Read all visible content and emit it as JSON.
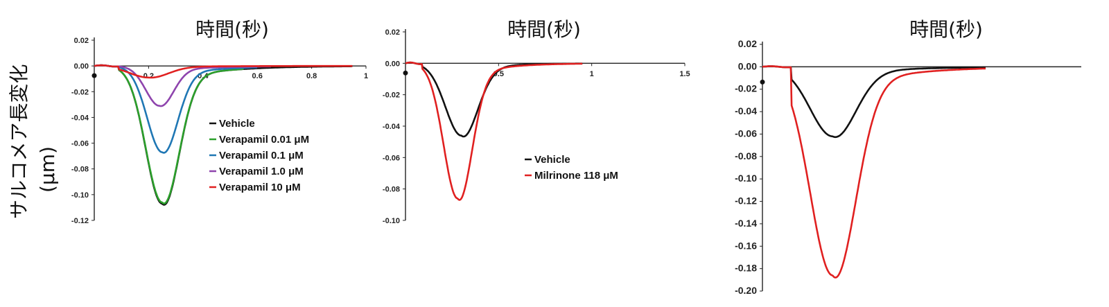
{
  "y_axis_label": {
    "line1": "サルコメア長変化",
    "line2": "(μm)"
  },
  "chart_data": [
    {
      "type": "line",
      "title": "時間(秒)",
      "x_ticks": [
        "0.2",
        "0.4",
        "0.6",
        "0.8",
        "1"
      ],
      "y_ticks": [
        "0.02",
        "0.00",
        "-0.02",
        "-0.04",
        "-0.06",
        "-0.08",
        "-0.10",
        "-0.12"
      ],
      "xlim": [
        0,
        1.0
      ],
      "ylim": [
        -0.12,
        0.02
      ],
      "legend_position": "right",
      "series": [
        {
          "name": "Vehicle",
          "color": "#111111",
          "amplitude": -0.107,
          "peak_time": 0.25,
          "width": 0.06,
          "end_time": 0.95
        },
        {
          "name": "Verapamil 0.01 μM",
          "color": "#2ca02c",
          "amplitude": -0.106,
          "peak_time": 0.25,
          "width": 0.06,
          "end_time": 0.55
        },
        {
          "name": "Verapamil 0.1 μM",
          "color": "#1f77b4",
          "amplitude": -0.067,
          "peak_time": 0.25,
          "width": 0.055,
          "end_time": 0.6
        },
        {
          "name": "Verapamil 1.0 μM",
          "color": "#8e44ad",
          "amplitude": -0.031,
          "peak_time": 0.24,
          "width": 0.05,
          "end_time": 0.65
        },
        {
          "name": "Verapamil 10 μM",
          "color": "#e02020",
          "amplitude": -0.009,
          "peak_time": 0.2,
          "width": 0.07,
          "end_time": 0.95
        }
      ]
    },
    {
      "type": "line",
      "title": "時間(秒)",
      "x_ticks": [
        "0.5",
        "1",
        "1.5"
      ],
      "y_ticks": [
        "0.02",
        "0.00",
        "-0.02",
        "-0.04",
        "-0.06",
        "-0.08",
        "-0.10"
      ],
      "xlim": [
        0,
        1.5
      ],
      "ylim": [
        -0.1,
        0.02
      ],
      "legend_position": "lower-right",
      "series": [
        {
          "name": "Vehicle",
          "color": "#111111",
          "amplitude": -0.046,
          "peak_time": 0.3,
          "width": 0.085,
          "end_time": 0.95
        },
        {
          "name": "Milrinone 118 μM",
          "color": "#e02020",
          "amplitude": -0.086,
          "peak_time": 0.28,
          "width": 0.075,
          "end_time": 0.95
        }
      ]
    },
    {
      "type": "line",
      "title": "時間(秒)",
      "x_ticks": [],
      "y_ticks": [
        "0.02",
        "0.00",
        "-0.02",
        "-0.04",
        "-0.06",
        "-0.08",
        "-0.10",
        "-0.12",
        "-0.14",
        "-0.16",
        "-0.18",
        "-0.20"
      ],
      "xlim": [
        0,
        1.0
      ],
      "ylim": [
        -0.2,
        0.02
      ],
      "legend_position": "none",
      "series": [
        {
          "name": "",
          "color": "#111111",
          "amplitude": -0.062,
          "peak_time": 0.22,
          "width": 0.07,
          "end_time": 0.7
        },
        {
          "name": "",
          "color": "#e02020",
          "amplitude": -0.186,
          "peak_time": 0.22,
          "width": 0.07,
          "end_time": 0.7
        }
      ]
    }
  ]
}
